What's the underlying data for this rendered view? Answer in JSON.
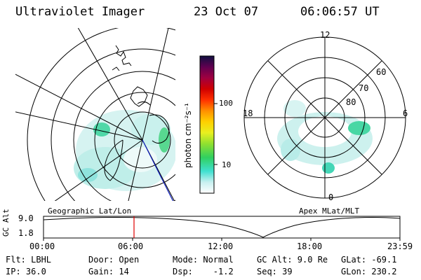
{
  "header": {
    "title": "Ultraviolet Imager",
    "date": "23 Oct 07",
    "time": "06:06:57 UT"
  },
  "colorbar": {
    "label": "photon cm⁻²s⁻¹",
    "ticks": [
      "100",
      "10"
    ]
  },
  "geo_panel": {
    "label": "Geographic Lat/Lon"
  },
  "apex_panel": {
    "label": "Apex MLat/MLT",
    "mlt_labels": {
      "top": "12",
      "left": "18",
      "right": "6",
      "bottom": "0"
    },
    "lat_labels": [
      "80",
      "70",
      "60"
    ]
  },
  "timeline": {
    "ylabel": "GC Alt",
    "yticks": [
      "9.0",
      "1.8"
    ],
    "xticks": [
      "00:00",
      "06:00",
      "12:00",
      "18:00",
      "23:59"
    ],
    "marker_time": "06:06:57",
    "marker_fraction": 0.255
  },
  "status": {
    "flt": "Flt: LBHL",
    "ip": "IP: 36.0",
    "door": "Door: Open",
    "gain": "Gain: 14",
    "mode": "Mode: Normal",
    "dsp": "Dsp:    -1.2",
    "gcalt": "GC Alt: 9.0 Re",
    "seq": "Seq: 39",
    "glat": "GLat: -69.1",
    "glon": "GLon: 230.2"
  }
}
